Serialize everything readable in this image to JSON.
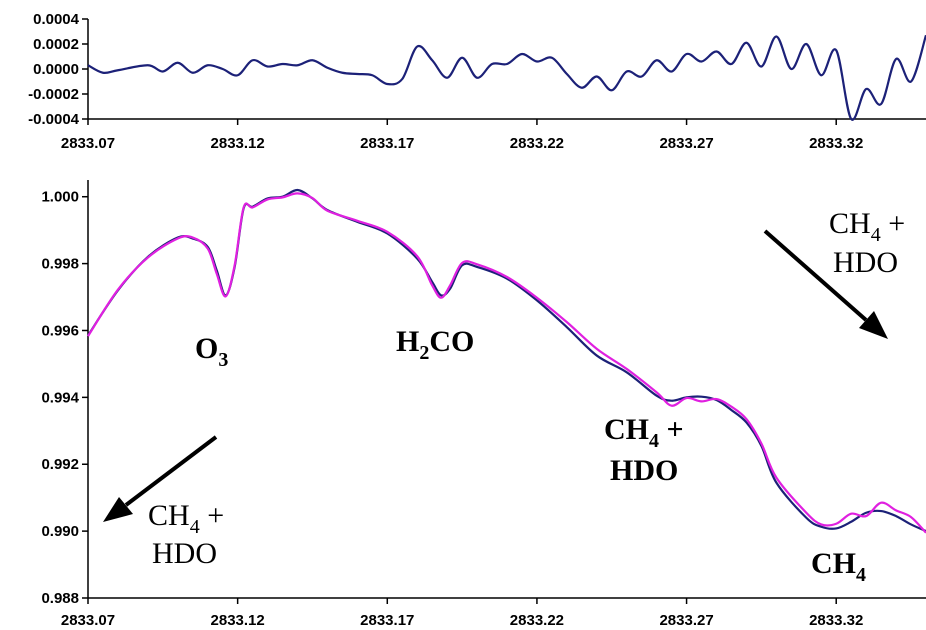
{
  "chart_data": [
    {
      "name": "residual",
      "type": "line",
      "title": "",
      "xlabel": "",
      "ylabel": "",
      "xlim": [
        2833.07,
        2833.35
      ],
      "ylim": [
        -0.0004,
        0.0004
      ],
      "xticks": [
        2833.07,
        2833.12,
        2833.17,
        2833.22,
        2833.27,
        2833.32
      ],
      "xtick_labels": [
        "2833.07",
        "2833.12",
        "2833.17",
        "2833.22",
        "2833.27",
        "2833.32"
      ],
      "yticks": [
        -0.0004,
        -0.0002,
        0.0,
        0.0002,
        0.0004
      ],
      "ytick_labels": [
        "-0.0004",
        "-0.0002",
        "0.0000",
        "0.0002",
        "0.0004"
      ],
      "grid": false,
      "series": [
        {
          "color": "#1c2178",
          "x": [
            2833.07,
            2833.075,
            2833.08,
            2833.09,
            2833.095,
            2833.1,
            2833.105,
            2833.11,
            2833.115,
            2833.12,
            2833.125,
            2833.13,
            2833.135,
            2833.14,
            2833.145,
            2833.15,
            2833.155,
            2833.16,
            2833.165,
            2833.17,
            2833.175,
            2833.18,
            2833.185,
            2833.19,
            2833.195,
            2833.2,
            2833.205,
            2833.21,
            2833.215,
            2833.22,
            2833.225,
            2833.23,
            2833.235,
            2833.24,
            2833.245,
            2833.25,
            2833.255,
            2833.26,
            2833.265,
            2833.27,
            2833.275,
            2833.28,
            2833.285,
            2833.29,
            2833.295,
            2833.3,
            2833.305,
            2833.31,
            2833.315,
            2833.32,
            2833.325,
            2833.33,
            2833.335,
            2833.34,
            2833.345,
            2833.35
          ],
          "y": [
            3e-05,
            -3e-05,
            -1e-05,
            3e-05,
            -2e-05,
            5e-05,
            -3e-05,
            3e-05,
            0.0,
            -5e-05,
            7e-05,
            2e-05,
            4e-05,
            3e-05,
            7e-05,
            1e-05,
            -3e-05,
            -4e-05,
            -5e-05,
            -0.00012,
            -8e-05,
            0.00018,
            7e-05,
            -7e-05,
            9e-05,
            -7e-05,
            4e-05,
            4e-05,
            0.00012,
            6e-05,
            9e-05,
            -4e-05,
            -0.00015,
            -6e-05,
            -0.00017,
            -2e-05,
            -6e-05,
            7e-05,
            -2e-05,
            0.00012,
            6e-05,
            0.00014,
            4e-05,
            0.00021,
            2e-05,
            0.00026,
            0.0,
            0.0002,
            -5e-05,
            0.00015,
            -0.0004,
            -0.00016,
            -0.00028,
            8e-05,
            -0.0001,
            0.00027
          ]
        }
      ]
    },
    {
      "name": "spectrum",
      "type": "line",
      "title": "",
      "xlabel": "",
      "ylabel": "",
      "xlim": [
        2833.07,
        2833.35
      ],
      "ylim": [
        0.988,
        1.0005
      ],
      "xticks": [
        2833.07,
        2833.12,
        2833.17,
        2833.22,
        2833.27,
        2833.32
      ],
      "xtick_labels": [
        "2833.07",
        "2833.12",
        "2833.17",
        "2833.22",
        "2833.27",
        "2833.32"
      ],
      "yticks": [
        0.988,
        0.99,
        0.992,
        0.994,
        0.996,
        0.998,
        1.0
      ],
      "ytick_labels": [
        "0.988",
        "0.990",
        "0.992",
        "0.994",
        "0.996",
        "0.998",
        "1.000"
      ],
      "grid": false,
      "series": [
        {
          "color": "#1c2178",
          "x": [
            2833.07,
            2833.08,
            2833.09,
            2833.1,
            2833.105,
            2833.11,
            2833.113,
            2833.116,
            2833.119,
            2833.122,
            2833.125,
            2833.13,
            2833.135,
            2833.14,
            2833.145,
            2833.15,
            2833.16,
            2833.17,
            2833.18,
            2833.185,
            2833.188,
            2833.191,
            2833.195,
            2833.2,
            2833.21,
            2833.22,
            2833.23,
            2833.24,
            2833.25,
            2833.26,
            2833.265,
            2833.27,
            2833.275,
            2833.28,
            2833.285,
            2833.29,
            2833.295,
            2833.3,
            2833.31,
            2833.315,
            2833.32,
            2833.325,
            2833.33,
            2833.335,
            2833.34,
            2833.345,
            2833.35
          ],
          "y": [
            0.99585,
            0.9972,
            0.9982,
            0.99878,
            0.99875,
            0.9985,
            0.9978,
            0.99705,
            0.9979,
            0.99965,
            0.9997,
            0.99995,
            1.0,
            1.0002,
            0.99995,
            0.9996,
            0.99925,
            0.9989,
            0.99815,
            0.99745,
            0.99705,
            0.99725,
            0.99795,
            0.9979,
            0.99755,
            0.9969,
            0.9961,
            0.99525,
            0.99475,
            0.99405,
            0.9939,
            0.994,
            0.99402,
            0.99392,
            0.99362,
            0.99325,
            0.99255,
            0.99145,
            0.9904,
            0.99013,
            0.99008,
            0.99028,
            0.99055,
            0.9906,
            0.99045,
            0.9902,
            0.99
          ]
        },
        {
          "color": "#e020e0",
          "x": [
            2833.07,
            2833.08,
            2833.09,
            2833.1,
            2833.105,
            2833.11,
            2833.113,
            2833.116,
            2833.119,
            2833.122,
            2833.125,
            2833.13,
            2833.135,
            2833.14,
            2833.145,
            2833.15,
            2833.16,
            2833.17,
            2833.18,
            2833.185,
            2833.188,
            2833.191,
            2833.195,
            2833.2,
            2833.21,
            2833.22,
            2833.23,
            2833.24,
            2833.25,
            2833.26,
            2833.265,
            2833.27,
            2833.275,
            2833.28,
            2833.285,
            2833.29,
            2833.295,
            2833.3,
            2833.31,
            2833.315,
            2833.32,
            2833.325,
            2833.33,
            2833.335,
            2833.34,
            2833.345,
            2833.35
          ],
          "y": [
            0.99583,
            0.99722,
            0.99818,
            0.99875,
            0.99878,
            0.99845,
            0.9977,
            0.99702,
            0.99795,
            0.99968,
            0.99968,
            0.99992,
            0.99998,
            1.0001,
            0.99996,
            0.99958,
            0.99928,
            0.99895,
            0.99822,
            0.99735,
            0.99698,
            0.99735,
            0.99802,
            0.99798,
            0.9976,
            0.99698,
            0.99625,
            0.99545,
            0.99485,
            0.99415,
            0.99375,
            0.99398,
            0.99388,
            0.99395,
            0.99372,
            0.99335,
            0.99262,
            0.9916,
            0.99055,
            0.9902,
            0.99022,
            0.99052,
            0.99045,
            0.99085,
            0.99062,
            0.99042,
            0.98995
          ]
        }
      ],
      "annotations": {
        "o3": {
          "main": "O",
          "sub": "3"
        },
        "h2co": {
          "pre": "H",
          "sub": "2",
          "post": "CO"
        },
        "ch4_hdo_mid": {
          "line1_main": "CH",
          "line1_sub": "4",
          "line1_post": " +",
          "line2": "HDO"
        },
        "ch4_right": {
          "main": "CH",
          "sub": "4"
        },
        "ch4_hdo_left": {
          "line1_main": "CH",
          "line1_sub": "4",
          "line1_post": " +",
          "line2": "HDO"
        },
        "ch4_hdo_topright": {
          "line1_main": "CH",
          "line1_sub": "4",
          "line1_post": " +",
          "line2": "HDO"
        }
      }
    }
  ]
}
